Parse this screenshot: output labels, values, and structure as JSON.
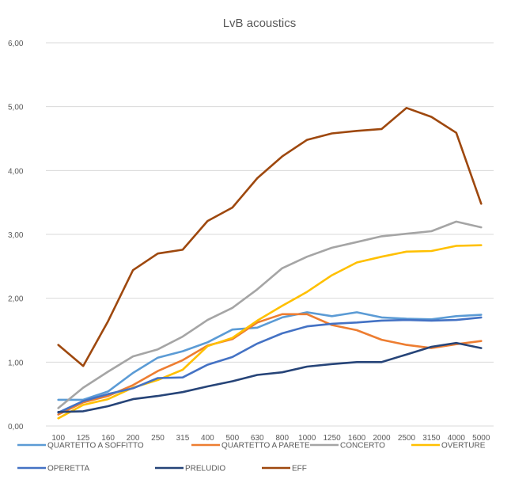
{
  "chart_data": {
    "type": "line",
    "title": "LvB acoustics",
    "xlabel": "",
    "ylabel": "",
    "ylim": [
      0,
      6
    ],
    "yticks": [
      "0,00",
      "1,00",
      "2,00",
      "3,00",
      "4,00",
      "5,00",
      "6,00"
    ],
    "grid": true,
    "legend": "bottom",
    "categories": [
      "100",
      "125",
      "160",
      "200",
      "250",
      "315",
      "400",
      "500",
      "630",
      "800",
      "1000",
      "1250",
      "1600",
      "2000",
      "2500",
      "3150",
      "4000",
      "5000"
    ],
    "series": [
      {
        "name": "QUARTETTO A SOFFITTO",
        "color": "#5b9bd5",
        "values": [
          0.41,
          0.41,
          0.54,
          0.83,
          1.07,
          1.17,
          1.31,
          1.51,
          1.54,
          1.7,
          1.78,
          1.72,
          1.78,
          1.7,
          1.68,
          1.67,
          1.72,
          1.74
        ]
      },
      {
        "name": "QUARTETTO A PARETE",
        "color": "#ed7d31",
        "values": [
          0.18,
          0.37,
          0.47,
          0.64,
          0.86,
          1.03,
          1.26,
          1.36,
          1.62,
          1.75,
          1.75,
          1.58,
          1.5,
          1.35,
          1.27,
          1.22,
          1.28,
          1.33
        ]
      },
      {
        "name": "CONCERTO",
        "color": "#a5a5a5",
        "values": [
          0.28,
          0.6,
          0.85,
          1.09,
          1.2,
          1.4,
          1.66,
          1.85,
          2.14,
          2.47,
          2.65,
          2.79,
          2.88,
          2.97,
          3.01,
          3.05,
          3.2,
          3.11
        ]
      },
      {
        "name": "OVERTURE",
        "color": "#ffc000",
        "values": [
          0.12,
          0.33,
          0.42,
          0.6,
          0.72,
          0.88,
          1.25,
          1.38,
          1.65,
          1.88,
          2.1,
          2.36,
          2.56,
          2.65,
          2.73,
          2.74,
          2.82,
          2.83
        ]
      },
      {
        "name": "OPERETTA",
        "color": "#4472c4",
        "values": [
          0.21,
          0.39,
          0.5,
          0.59,
          0.75,
          0.76,
          0.96,
          1.08,
          1.29,
          1.45,
          1.56,
          1.6,
          1.62,
          1.65,
          1.66,
          1.65,
          1.66,
          1.7
        ]
      },
      {
        "name": "PRELUDIO",
        "color": "#264478",
        "values": [
          0.22,
          0.23,
          0.31,
          0.42,
          0.47,
          0.53,
          0.62,
          0.7,
          0.8,
          0.84,
          0.93,
          0.97,
          1.0,
          1.0,
          1.12,
          1.24,
          1.3,
          1.22
        ]
      },
      {
        "name": "EFF",
        "color": "#9e480e",
        "values": [
          1.27,
          0.94,
          1.64,
          2.44,
          2.7,
          2.76,
          3.21,
          3.42,
          3.88,
          4.22,
          4.48,
          4.58,
          4.62,
          4.65,
          4.98,
          4.84,
          4.59,
          3.48
        ]
      }
    ]
  }
}
